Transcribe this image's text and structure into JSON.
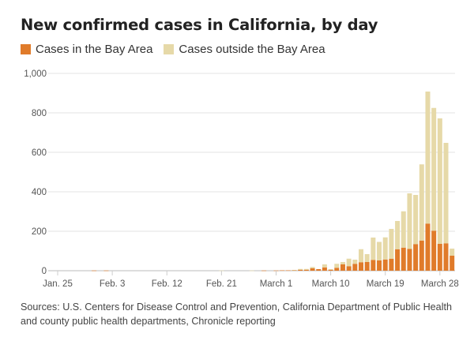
{
  "title": "New confirmed cases in California, by day",
  "legend": [
    {
      "label": "Cases in the Bay Area",
      "color": "#E07B2A"
    },
    {
      "label": "Cases outside the Bay Area",
      "color": "#E6D9A8"
    }
  ],
  "source": "Sources: U.S. Centers for Disease Control and Prevention, California Department of Public Health and county public health departments, Chronicle reporting",
  "chart_data": {
    "type": "bar",
    "stacked": true,
    "title": "New confirmed cases in California, by day",
    "xlabel": "",
    "ylabel": "",
    "ylim": [
      0,
      1000
    ],
    "yticks": [
      0,
      200,
      400,
      600,
      800,
      1000
    ],
    "ytick_labels": [
      "0",
      "200",
      "400",
      "600",
      "800",
      "1,000"
    ],
    "xticks": [
      {
        "index": 0,
        "label": "Jan. 25"
      },
      {
        "index": 9,
        "label": "Feb. 3"
      },
      {
        "index": 18,
        "label": "Feb. 12"
      },
      {
        "index": 27,
        "label": "Feb. 21"
      },
      {
        "index": 36,
        "label": "March 1"
      },
      {
        "index": 45,
        "label": "March 10"
      },
      {
        "index": 54,
        "label": "March 19"
      },
      {
        "index": 63,
        "label": "March 28"
      }
    ],
    "grid": true,
    "legend_position": "top-left",
    "categories": [
      "Jan 25",
      "Jan 26",
      "Jan 27",
      "Jan 28",
      "Jan 29",
      "Jan 30",
      "Jan 31",
      "Feb 1",
      "Feb 2",
      "Feb 3",
      "Feb 4",
      "Feb 5",
      "Feb 6",
      "Feb 7",
      "Feb 8",
      "Feb 9",
      "Feb 10",
      "Feb 11",
      "Feb 12",
      "Feb 13",
      "Feb 14",
      "Feb 15",
      "Feb 16",
      "Feb 17",
      "Feb 18",
      "Feb 19",
      "Feb 20",
      "Feb 21",
      "Feb 22",
      "Feb 23",
      "Feb 24",
      "Feb 25",
      "Feb 26",
      "Feb 27",
      "Feb 28",
      "Feb 29",
      "Mar 1",
      "Mar 2",
      "Mar 3",
      "Mar 4",
      "Mar 5",
      "Mar 6",
      "Mar 7",
      "Mar 8",
      "Mar 9",
      "Mar 10",
      "Mar 11",
      "Mar 12",
      "Mar 13",
      "Mar 14",
      "Mar 15",
      "Mar 16",
      "Mar 17",
      "Mar 18",
      "Mar 19",
      "Mar 20",
      "Mar 21",
      "Mar 22",
      "Mar 23",
      "Mar 24",
      "Mar 25",
      "Mar 26",
      "Mar 27",
      "Mar 28",
      "Mar 29",
      "Mar 30"
    ],
    "series": [
      {
        "name": "Cases in the Bay Area",
        "color": "#E07B2A",
        "values": [
          0,
          0,
          0,
          0,
          0,
          0,
          1,
          0,
          1,
          0,
          0,
          0,
          0,
          0,
          0,
          0,
          0,
          0,
          0,
          0,
          0,
          0,
          0,
          0,
          0,
          0,
          0,
          0,
          0,
          0,
          0,
          0,
          0,
          0,
          1,
          0,
          1,
          2,
          2,
          3,
          5,
          5,
          12,
          8,
          17,
          5,
          15,
          32,
          23,
          35,
          43,
          44,
          55,
          52,
          57,
          61,
          109,
          117,
          111,
          135,
          153,
          239,
          203,
          136,
          139,
          76
        ]
      },
      {
        "name": "Cases outside the Bay Area",
        "color": "#E6D9A8",
        "values": [
          0,
          0,
          0,
          0,
          0,
          0,
          0,
          0,
          0,
          0,
          0,
          0,
          0,
          0,
          0,
          0,
          0,
          0,
          0,
          0,
          0,
          0,
          0,
          0,
          0,
          0,
          0,
          1,
          0,
          0,
          0,
          0,
          1,
          0,
          0,
          0,
          0,
          0,
          0,
          1,
          4,
          4,
          7,
          0,
          15,
          3,
          20,
          12,
          38,
          21,
          66,
          40,
          113,
          94,
          112,
          151,
          143,
          184,
          281,
          249,
          386,
          669,
          622,
          636,
          509,
          36
        ]
      }
    ]
  }
}
